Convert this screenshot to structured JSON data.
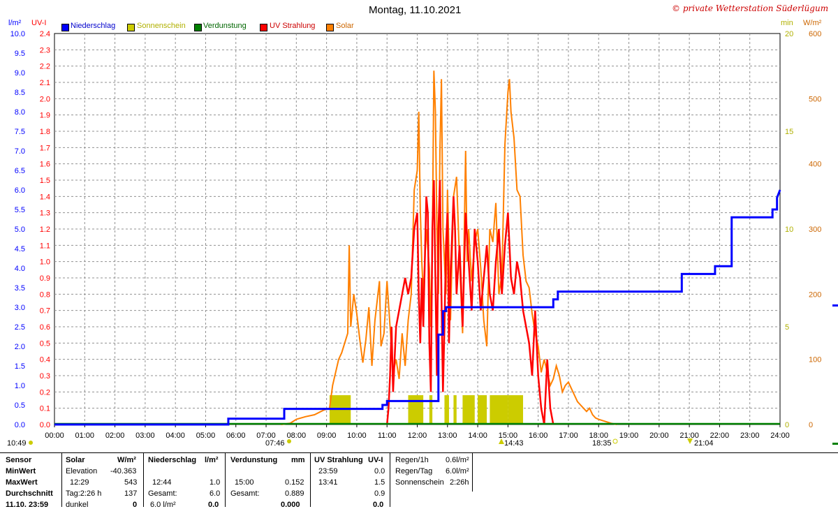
{
  "header": {
    "title": "Montag, 11.10.2021",
    "copyright": "© private Wetterstation Süderlügum",
    "left_unit_1": "l/m²",
    "left_unit_2": "UV-I",
    "right_unit_1": "min",
    "right_unit_2": "W/m²"
  },
  "colors": {
    "niederschlag": "#0000ff",
    "sonnenschein": "#cccc00",
    "verdunstung": "#008000",
    "uv": "#ff0000",
    "solar": "#ff8000",
    "grid": "#909090"
  },
  "chart_data": {
    "type": "line",
    "title": "Montag, 11.10.2021",
    "x_ticks": [
      "00:00",
      "01:00",
      "02:00",
      "03:00",
      "04:00",
      "05:00",
      "06:00",
      "07:00",
      "08:00",
      "09:00",
      "10:00",
      "11:00",
      "12:00",
      "13:00",
      "14:00",
      "15:00",
      "16:00",
      "17:00",
      "18:00",
      "19:00",
      "20:00",
      "21:00",
      "22:00",
      "23:00",
      "24:00"
    ],
    "y_left_niederschlag": {
      "label": "l/m²",
      "min": 0,
      "max": 10,
      "ticks": [
        "0.0",
        "0.5",
        "1.0",
        "1.5",
        "2.0",
        "2.5",
        "3.0",
        "3.5",
        "4.0",
        "4.5",
        "5.0",
        "5.5",
        "6.0",
        "6.5",
        "7.0",
        "7.5",
        "8.0",
        "8.5",
        "9.0",
        "9.5",
        "10.0"
      ]
    },
    "y_left_uv": {
      "label": "UV-I",
      "min": 0,
      "max": 2.4,
      "ticks": [
        "0.0",
        "0.1",
        "0.2",
        "0.3",
        "0.4",
        "0.5",
        "0.6",
        "0.7",
        "0.8",
        "0.9",
        "1.0",
        "1.1",
        "1.2",
        "1.3",
        "1.4",
        "1.5",
        "1.6",
        "1.7",
        "1.8",
        "1.9",
        "2.0",
        "2.1",
        "2.2",
        "2.3",
        "2.4"
      ]
    },
    "y_right_min": {
      "label": "min",
      "min": 0,
      "max": 20,
      "ticks": [
        "0",
        "5",
        "10",
        "15",
        "20"
      ]
    },
    "y_right_solar": {
      "label": "W/m²",
      "min": 0,
      "max": 600,
      "ticks": [
        "0",
        "100",
        "200",
        "300",
        "400",
        "500",
        "600"
      ]
    },
    "legend": [
      "Niederschlag",
      "Sonnenschein",
      "Verdunstung",
      "UV Strahlung",
      "Solar"
    ],
    "legend_position": "top-left",
    "grid": true,
    "series": [
      {
        "name": "Niederschlag",
        "unit": "l/m²",
        "points": [
          [
            0,
            0
          ],
          [
            5.75,
            0
          ],
          [
            5.75,
            0.15
          ],
          [
            7.6,
            0.15
          ],
          [
            7.6,
            0.4
          ],
          [
            10.85,
            0.4
          ],
          [
            10.85,
            0.5
          ],
          [
            11.0,
            0.5
          ],
          [
            11.0,
            0.6
          ],
          [
            12.7,
            0.6
          ],
          [
            12.7,
            2.3
          ],
          [
            12.85,
            2.3
          ],
          [
            12.85,
            2.9
          ],
          [
            12.95,
            2.9
          ],
          [
            12.95,
            3.0
          ],
          [
            16.5,
            3.0
          ],
          [
            16.5,
            3.2
          ],
          [
            16.65,
            3.2
          ],
          [
            16.65,
            3.4
          ],
          [
            20.75,
            3.4
          ],
          [
            20.75,
            3.85
          ],
          [
            21.85,
            3.85
          ],
          [
            21.85,
            4.05
          ],
          [
            22.4,
            4.05
          ],
          [
            22.4,
            5.3
          ],
          [
            23.75,
            5.3
          ],
          [
            23.75,
            5.5
          ],
          [
            23.9,
            5.5
          ],
          [
            23.9,
            5.8
          ],
          [
            24,
            6.0
          ]
        ]
      },
      {
        "name": "Solar",
        "unit": "W/m²",
        "points": [
          [
            7.5,
            0
          ],
          [
            7.8,
            2
          ],
          [
            8.0,
            8
          ],
          [
            8.3,
            12
          ],
          [
            8.6,
            15
          ],
          [
            8.9,
            22
          ],
          [
            9.1,
            25
          ],
          [
            9.2,
            60
          ],
          [
            9.4,
            100
          ],
          [
            9.5,
            110
          ],
          [
            9.6,
            125
          ],
          [
            9.7,
            140
          ],
          [
            9.75,
            275
          ],
          [
            9.8,
            150
          ],
          [
            9.9,
            200
          ],
          [
            10.0,
            170
          ],
          [
            10.1,
            130
          ],
          [
            10.2,
            95
          ],
          [
            10.3,
            130
          ],
          [
            10.4,
            180
          ],
          [
            10.5,
            90
          ],
          [
            10.6,
            160
          ],
          [
            10.75,
            220
          ],
          [
            10.8,
            120
          ],
          [
            10.9,
            140
          ],
          [
            11.0,
            220
          ],
          [
            11.1,
            150
          ],
          [
            11.2,
            80
          ],
          [
            11.3,
            100
          ],
          [
            11.4,
            70
          ],
          [
            11.5,
            140
          ],
          [
            11.6,
            90
          ],
          [
            11.7,
            160
          ],
          [
            11.8,
            200
          ],
          [
            11.9,
            360
          ],
          [
            12.0,
            390
          ],
          [
            12.05,
            480
          ],
          [
            12.1,
            330
          ],
          [
            12.15,
            250
          ],
          [
            12.2,
            200
          ],
          [
            12.3,
            300
          ],
          [
            12.4,
            240
          ],
          [
            12.45,
            150
          ],
          [
            12.5,
            280
          ],
          [
            12.55,
            543
          ],
          [
            12.6,
            480
          ],
          [
            12.65,
            300
          ],
          [
            12.7,
            200
          ],
          [
            12.75,
            420
          ],
          [
            12.8,
            530
          ],
          [
            12.85,
            300
          ],
          [
            12.9,
            250
          ],
          [
            12.95,
            200
          ],
          [
            13.0,
            360
          ],
          [
            13.1,
            160
          ],
          [
            13.2,
            350
          ],
          [
            13.3,
            380
          ],
          [
            13.4,
            250
          ],
          [
            13.5,
            140
          ],
          [
            13.6,
            420
          ],
          [
            13.65,
            250
          ],
          [
            13.7,
            300
          ],
          [
            13.8,
            220
          ],
          [
            13.9,
            280
          ],
          [
            14.0,
            300
          ],
          [
            14.1,
            240
          ],
          [
            14.2,
            160
          ],
          [
            14.3,
            120
          ],
          [
            14.4,
            300
          ],
          [
            14.5,
            280
          ],
          [
            14.6,
            340
          ],
          [
            14.7,
            200
          ],
          [
            14.8,
            230
          ],
          [
            14.9,
            430
          ],
          [
            15.0,
            510
          ],
          [
            15.05,
            530
          ],
          [
            15.1,
            480
          ],
          [
            15.2,
            440
          ],
          [
            15.3,
            360
          ],
          [
            15.4,
            350
          ],
          [
            15.5,
            260
          ],
          [
            15.6,
            220
          ],
          [
            15.7,
            210
          ],
          [
            15.8,
            170
          ],
          [
            15.9,
            140
          ],
          [
            16.0,
            120
          ],
          [
            16.1,
            80
          ],
          [
            16.2,
            100
          ],
          [
            16.3,
            80
          ],
          [
            16.4,
            60
          ],
          [
            16.5,
            70
          ],
          [
            16.6,
            90
          ],
          [
            16.7,
            75
          ],
          [
            16.8,
            50
          ],
          [
            16.9,
            60
          ],
          [
            17.0,
            65
          ],
          [
            17.1,
            55
          ],
          [
            17.2,
            45
          ],
          [
            17.3,
            35
          ],
          [
            17.4,
            30
          ],
          [
            17.5,
            25
          ],
          [
            17.6,
            20
          ],
          [
            17.7,
            25
          ],
          [
            17.8,
            15
          ],
          [
            17.9,
            10
          ],
          [
            18.0,
            8
          ],
          [
            18.2,
            5
          ],
          [
            18.4,
            2
          ],
          [
            18.6,
            0
          ]
        ]
      },
      {
        "name": "UV Strahlung",
        "unit": "UV-I",
        "points": [
          [
            11.0,
            0
          ],
          [
            11.05,
            0.1
          ],
          [
            11.1,
            0.3
          ],
          [
            11.15,
            0.6
          ],
          [
            11.2,
            0.2
          ],
          [
            11.3,
            0.6
          ],
          [
            11.4,
            0.7
          ],
          [
            11.5,
            0.8
          ],
          [
            11.6,
            0.9
          ],
          [
            11.7,
            0.8
          ],
          [
            11.8,
            0.9
          ],
          [
            11.9,
            1.2
          ],
          [
            12.0,
            1.3
          ],
          [
            12.05,
            0.8
          ],
          [
            12.1,
            0.5
          ],
          [
            12.15,
            0.9
          ],
          [
            12.2,
            0.6
          ],
          [
            12.3,
            1.4
          ],
          [
            12.35,
            1.3
          ],
          [
            12.4,
            0.5
          ],
          [
            12.45,
            0.2
          ],
          [
            12.5,
            1.2
          ],
          [
            12.55,
            1.5
          ],
          [
            12.6,
            0.9
          ],
          [
            12.65,
            0.3
          ],
          [
            12.7,
            1.2
          ],
          [
            12.75,
            1.5
          ],
          [
            12.8,
            0.8
          ],
          [
            12.85,
            0.2
          ],
          [
            12.9,
            0.6
          ],
          [
            12.95,
            1.1
          ],
          [
            13.0,
            1.3
          ],
          [
            13.05,
            0.5
          ],
          [
            13.1,
            0.9
          ],
          [
            13.2,
            1.4
          ],
          [
            13.25,
            1.2
          ],
          [
            13.3,
            0.8
          ],
          [
            13.4,
            1.1
          ],
          [
            13.5,
            0.6
          ],
          [
            13.6,
            1.3
          ],
          [
            13.7,
            1.0
          ],
          [
            13.8,
            0.7
          ],
          [
            13.9,
            1.2
          ],
          [
            14.0,
            1.0
          ],
          [
            14.1,
            0.7
          ],
          [
            14.2,
            0.9
          ],
          [
            14.3,
            1.1
          ],
          [
            14.4,
            0.8
          ],
          [
            14.5,
            0.7
          ],
          [
            14.6,
            1.0
          ],
          [
            14.7,
            1.2
          ],
          [
            14.8,
            0.8
          ],
          [
            14.9,
            1.1
          ],
          [
            15.0,
            1.3
          ],
          [
            15.05,
            1.1
          ],
          [
            15.1,
            0.9
          ],
          [
            15.2,
            0.8
          ],
          [
            15.3,
            1.0
          ],
          [
            15.4,
            0.9
          ],
          [
            15.5,
            0.7
          ],
          [
            15.6,
            0.6
          ],
          [
            15.7,
            0.5
          ],
          [
            15.8,
            0.3
          ],
          [
            15.9,
            0.7
          ],
          [
            16.0,
            0.3
          ],
          [
            16.1,
            0.1
          ],
          [
            16.2,
            0.0
          ],
          [
            16.3,
            0.4
          ],
          [
            16.4,
            0.1
          ],
          [
            16.5,
            0.0
          ]
        ]
      },
      {
        "name": "Sonnenschein",
        "unit": "min",
        "bars": [
          [
            9.1,
            9.8,
            1.0
          ],
          [
            11.7,
            12.2,
            1.0
          ],
          [
            12.4,
            12.5,
            1.0
          ],
          [
            12.9,
            13.05,
            1.0
          ],
          [
            13.2,
            13.3,
            1.0
          ],
          [
            13.5,
            13.9,
            1.0
          ],
          [
            14.0,
            14.3,
            1.0
          ],
          [
            14.4,
            15.0,
            1.0
          ],
          [
            15.0,
            15.5,
            1.0
          ]
        ]
      },
      {
        "name": "Verdunstung",
        "unit": "mm",
        "points": [
          [
            0,
            0
          ],
          [
            24,
            0
          ]
        ]
      }
    ]
  },
  "markers": {
    "sunrise": "07:46",
    "sunset": "18:35",
    "left_time": "10:49",
    "mark_1": "14:43",
    "mark_2": "21:04"
  },
  "stats": {
    "col_sensor": {
      "header": "Sensor",
      "rows": [
        "MinWert",
        "MaxWert",
        "Durchschnitt",
        "11.10. 23:59"
      ]
    },
    "col_solar": {
      "header": "Solar",
      "unit": "W/m²",
      "rows": [
        [
          "Elevation",
          "-40.363"
        ],
        [
          "12:29",
          "543"
        ],
        [
          "Tag:2:26 h",
          "137"
        ],
        [
          "dunkel",
          "0"
        ]
      ]
    },
    "col_niederschlag": {
      "header": "Niederschlag",
      "unit": "l/m²",
      "rows": [
        [
          "",
          ""
        ],
        [
          "12:44",
          "1.0"
        ],
        [
          "Gesamt:",
          "6.0"
        ],
        [
          "6.0 l/m²",
          "0.0"
        ]
      ]
    },
    "col_verdunstung": {
      "header": "Verdunstung",
      "unit": "mm",
      "rows": [
        [
          "",
          ""
        ],
        [
          "15:00",
          "0.152"
        ],
        [
          "Gesamt:",
          "0.889"
        ],
        [
          "",
          "0.000"
        ]
      ]
    },
    "col_uv": {
      "header": "UV Strahlung",
      "unit": "UV-I",
      "rows": [
        [
          "23:59",
          "0.0"
        ],
        [
          "13:41",
          "1.5"
        ],
        [
          "",
          "0.9"
        ],
        [
          "",
          "0.0"
        ]
      ]
    },
    "col_regen": {
      "rows": [
        [
          "Regen/1h",
          "0.6l/m²"
        ],
        [
          "Regen/Tag",
          "6.0l/m²"
        ],
        [
          "Sonnenschein",
          "2:26h"
        ]
      ]
    }
  }
}
